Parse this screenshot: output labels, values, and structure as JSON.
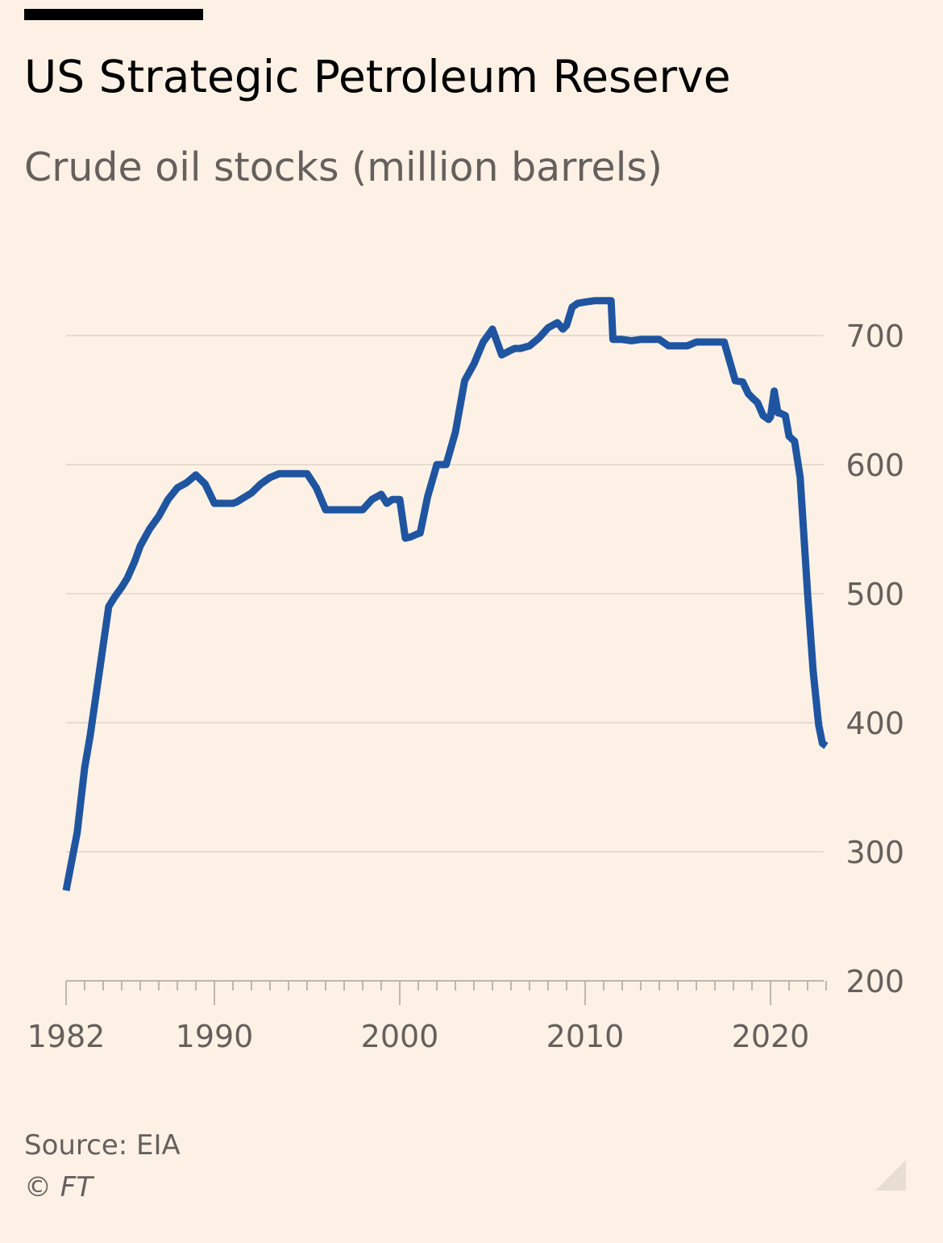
{
  "chart_data": {
    "type": "line",
    "title": "US Strategic Petroleum Reserve",
    "subtitle": "Crude oil stocks (million barrels)",
    "xlabel": "",
    "ylabel": "",
    "xlim": [
      1982,
      2023.2
    ],
    "ylim": [
      200,
      700
    ],
    "x_ticks": [
      1982,
      1990,
      2000,
      2010,
      2020
    ],
    "y_ticks": [
      200,
      300,
      400,
      500,
      600,
      700
    ],
    "y_axis_side": "right",
    "grid": "horizontal",
    "legend": "none",
    "line_color": "#1f55a0",
    "series": [
      {
        "name": "",
        "x": [
          1982.0,
          1982.2,
          1982.6,
          1983.0,
          1983.3,
          1983.7,
          1984.0,
          1984.3,
          1984.6,
          1985.0,
          1985.3,
          1985.7,
          1986.0,
          1986.5,
          1987.0,
          1987.5,
          1988.0,
          1988.5,
          1989.0,
          1989.5,
          1990.0,
          1990.3,
          1990.6,
          1991.0,
          1991.2,
          1992.0,
          1992.5,
          1993.0,
          1993.5,
          1994.0,
          1994.5,
          1995.0,
          1995.5,
          1996.0,
          1996.5,
          1997.0,
          1997.5,
          1998.0,
          1998.5,
          1999.0,
          1999.3,
          1999.6,
          2000.0,
          2000.3,
          2000.6,
          2000.9,
          2001.1,
          2001.5,
          2002.0,
          2002.5,
          2003.0,
          2003.5,
          2004.0,
          2004.5,
          2005.0,
          2005.5,
          2005.9,
          2006.2,
          2006.5,
          2007.0,
          2007.5,
          2008.0,
          2008.5,
          2008.8,
          2009.0,
          2009.3,
          2009.6,
          2010.0,
          2010.5,
          2011.0,
          2011.4,
          2011.5,
          2012.0,
          2012.5,
          2013.0,
          2013.5,
          2014.0,
          2014.5,
          2015.0,
          2015.5,
          2016.0,
          2016.5,
          2017.0,
          2017.5,
          2017.8,
          2018.1,
          2018.5,
          2018.8,
          2019.0,
          2019.3,
          2019.6,
          2019.9,
          2020.0,
          2020.2,
          2020.4,
          2020.5,
          2020.8,
          2021.0,
          2021.3,
          2021.6,
          2022.0,
          2022.3,
          2022.6,
          2022.8,
          2023.0
        ],
        "values": [
          270,
          285,
          315,
          365,
          390,
          430,
          460,
          490,
          497,
          505,
          512,
          525,
          537,
          550,
          560,
          573,
          582,
          586,
          592,
          585,
          570,
          570,
          570,
          570,
          571,
          578,
          585,
          590,
          593,
          593,
          593,
          593,
          582,
          565,
          565,
          565,
          565,
          565,
          573,
          577,
          570,
          573,
          573,
          543,
          544,
          546,
          547,
          575,
          600,
          600,
          625,
          665,
          678,
          695,
          705,
          685,
          688,
          690,
          690,
          692,
          698,
          706,
          710,
          705,
          708,
          722,
          725,
          726,
          727,
          727,
          727,
          697,
          697,
          696,
          697,
          697,
          697,
          692,
          692,
          692,
          695,
          695,
          695,
          695,
          680,
          665,
          664,
          655,
          652,
          648,
          638,
          635,
          637,
          657,
          640,
          640,
          638,
          622,
          618,
          590,
          500,
          440,
          398,
          384,
          382
        ]
      }
    ]
  },
  "footer": {
    "source": "Source: EIA",
    "copyright": "© FT"
  }
}
